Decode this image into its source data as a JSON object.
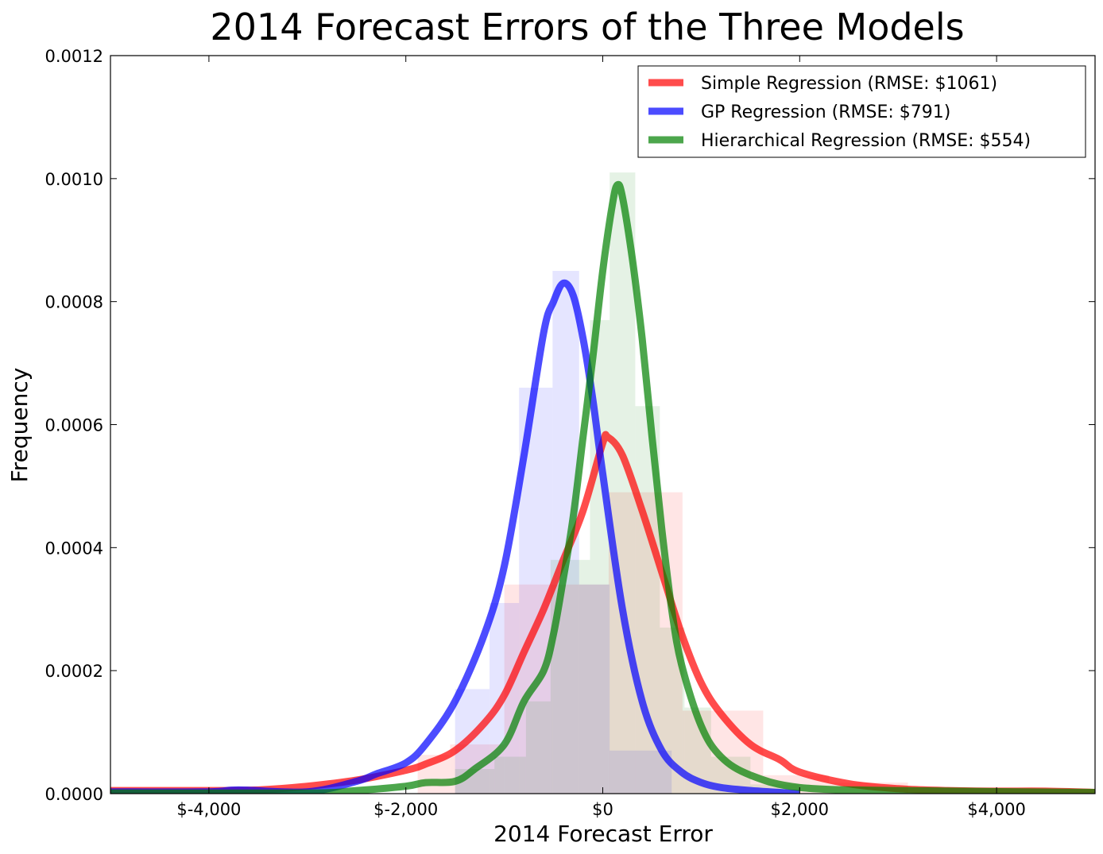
{
  "chart_data": {
    "type": "area",
    "title": "2014 Forecast Errors of the Three Models",
    "xlabel": "2014 Forecast Error",
    "ylabel": "Frequency",
    "xlim": [
      -5000,
      5000
    ],
    "ylim": [
      0,
      0.0012
    ],
    "x_ticks": [
      -4000,
      -2000,
      0,
      2000,
      4000
    ],
    "x_tick_labels": [
      "$-4,000",
      "$-2,000",
      "$0",
      "$2,000",
      "$4,000"
    ],
    "y_ticks": [
      0,
      0.0002,
      0.0004,
      0.0006,
      0.0008,
      0.001,
      0.0012
    ],
    "y_tick_labels": [
      "0.0000",
      "0.0002",
      "0.0004",
      "0.0006",
      "0.0008",
      "0.0010",
      "0.0012"
    ],
    "grid": false,
    "legend_position": "top-right",
    "series": [
      {
        "name": "Simple Regression (RMSE: $1061)",
        "color": "#ff0000",
        "density_x": [
          -5000,
          -4000,
          -3500,
          -3000,
          -2500,
          -2000,
          -1800,
          -1500,
          -1200,
          -1000,
          -800,
          -600,
          -400,
          -200,
          0,
          50,
          200,
          400,
          600,
          800,
          1000,
          1200,
          1500,
          1800,
          2000,
          2500,
          3000,
          3500,
          4000,
          4500,
          5000
        ],
        "density_y": [
          5e-06,
          5e-06,
          6e-06,
          1.2e-05,
          2.2e-05,
          3.8e-05,
          4.8e-05,
          7e-05,
          0.000115,
          0.00016,
          0.00023,
          0.0003,
          0.00038,
          0.00046,
          0.00057,
          0.00058,
          0.00055,
          0.00046,
          0.00036,
          0.00026,
          0.00018,
          0.00013,
          8e-05,
          5.5e-05,
          3.5e-05,
          1.6e-05,
          8e-06,
          5e-06,
          4e-06,
          4e-06,
          2e-06
        ],
        "hist_bins": [
          [
            -1880,
            -1550,
            6.3e-05
          ],
          [
            -1550,
            -1000,
            8e-05
          ],
          [
            -1000,
            -530,
            0.00034
          ],
          [
            -530,
            60,
            0.00034
          ],
          [
            60,
            810,
            0.00049
          ],
          [
            810,
            1630,
            0.000135
          ],
          [
            1630,
            2300,
            3e-05
          ],
          [
            2300,
            3100,
            1.8e-05
          ]
        ]
      },
      {
        "name": "GP Regression (RMSE: $791)",
        "color": "#0000ff",
        "density_x": [
          -5000,
          -4000,
          -3700,
          -3000,
          -2500,
          -2300,
          -2000,
          -1800,
          -1500,
          -1200,
          -1000,
          -800,
          -600,
          -500,
          -400,
          -300,
          -200,
          -100,
          0,
          200,
          400,
          600,
          800,
          1000,
          1200,
          1500,
          2000
        ],
        "density_y": [
          3e-06,
          3e-06,
          6e-06,
          3e-06,
          2e-05,
          3.2e-05,
          5e-05,
          8e-05,
          0.00015,
          0.00026,
          0.00037,
          0.00055,
          0.00075,
          0.0008,
          0.00083,
          0.00081,
          0.00074,
          0.00064,
          0.00052,
          0.0003,
          0.00015,
          7e-05,
          3.5e-05,
          1.8e-05,
          1e-05,
          5e-06,
          0
        ],
        "hist_bins": [
          [
            -1500,
            -1150,
            0.00017
          ],
          [
            -1150,
            -850,
            0.00031
          ],
          [
            -850,
            -510,
            0.00066
          ],
          [
            -510,
            -240,
            0.00085
          ],
          [
            -240,
            70,
            0.00034
          ],
          [
            70,
            700,
            7e-05
          ]
        ]
      },
      {
        "name": "Hierarchical Regression (RMSE: $554)",
        "color": "#008000",
        "density_x": [
          -5000,
          -3000,
          -2500,
          -2000,
          -1800,
          -1500,
          -1300,
          -1000,
          -800,
          -600,
          -500,
          -400,
          -300,
          -200,
          -100,
          0,
          100,
          150,
          200,
          300,
          400,
          500,
          600,
          700,
          800,
          1000,
          1200,
          1500,
          2000,
          3000,
          5000
        ],
        "density_y": [
          1e-06,
          1e-06,
          5e-06,
          1.2e-05,
          1.8e-05,
          2e-05,
          4e-05,
          8e-05,
          0.00015,
          0.0002,
          0.00026,
          0.00035,
          0.00045,
          0.00058,
          0.00071,
          0.00085,
          0.00096,
          0.00099,
          0.00097,
          0.00087,
          0.00074,
          0.00058,
          0.00043,
          0.0003,
          0.00021,
          0.00011,
          6e-05,
          3e-05,
          1e-05,
          5e-06,
          2e-06
        ],
        "hist_bins": [
          [
            -1500,
            -1100,
            4e-05
          ],
          [
            -1100,
            -780,
            6e-05
          ],
          [
            -780,
            -530,
            0.00015
          ],
          [
            -530,
            -130,
            0.00038
          ],
          [
            -130,
            70,
            0.00077
          ],
          [
            70,
            330,
            0.00101
          ],
          [
            330,
            580,
            0.00063
          ],
          [
            580,
            830,
            0.00027
          ],
          [
            830,
            1100,
            0.00014
          ],
          [
            1100,
            1500,
            6e-05
          ],
          [
            1500,
            2000,
            1.5e-05
          ]
        ]
      }
    ]
  }
}
